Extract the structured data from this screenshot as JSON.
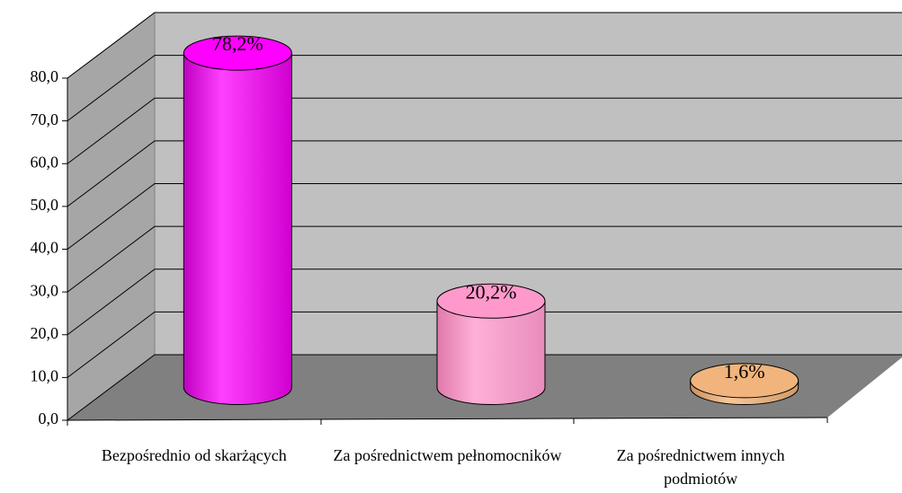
{
  "chart_data": {
    "type": "bar",
    "categories": [
      "Bezpośrednio od skarżących",
      "Za pośrednictwem pełnomocników",
      "Za pośrednictwem innych podmiotów"
    ],
    "values": [
      78.2,
      20.2,
      1.6
    ],
    "value_labels": [
      "78,2%",
      "20,2%",
      "1,6%"
    ],
    "colors": [
      "#ff00ff",
      "#ff99cc",
      "#f0b47c"
    ],
    "ylim": [
      0,
      80
    ],
    "yticks": [
      {
        "value": 0,
        "label": "0,0"
      },
      {
        "value": 10,
        "label": "10,0"
      },
      {
        "value": 20,
        "label": "20,0"
      },
      {
        "value": 30,
        "label": "30,0"
      },
      {
        "value": 40,
        "label": "40,0"
      },
      {
        "value": 50,
        "label": "50,0"
      },
      {
        "value": 60,
        "label": "60,0"
      },
      {
        "value": 70,
        "label": "70,0"
      },
      {
        "value": 80,
        "label": "80,0"
      }
    ],
    "grid": true
  }
}
